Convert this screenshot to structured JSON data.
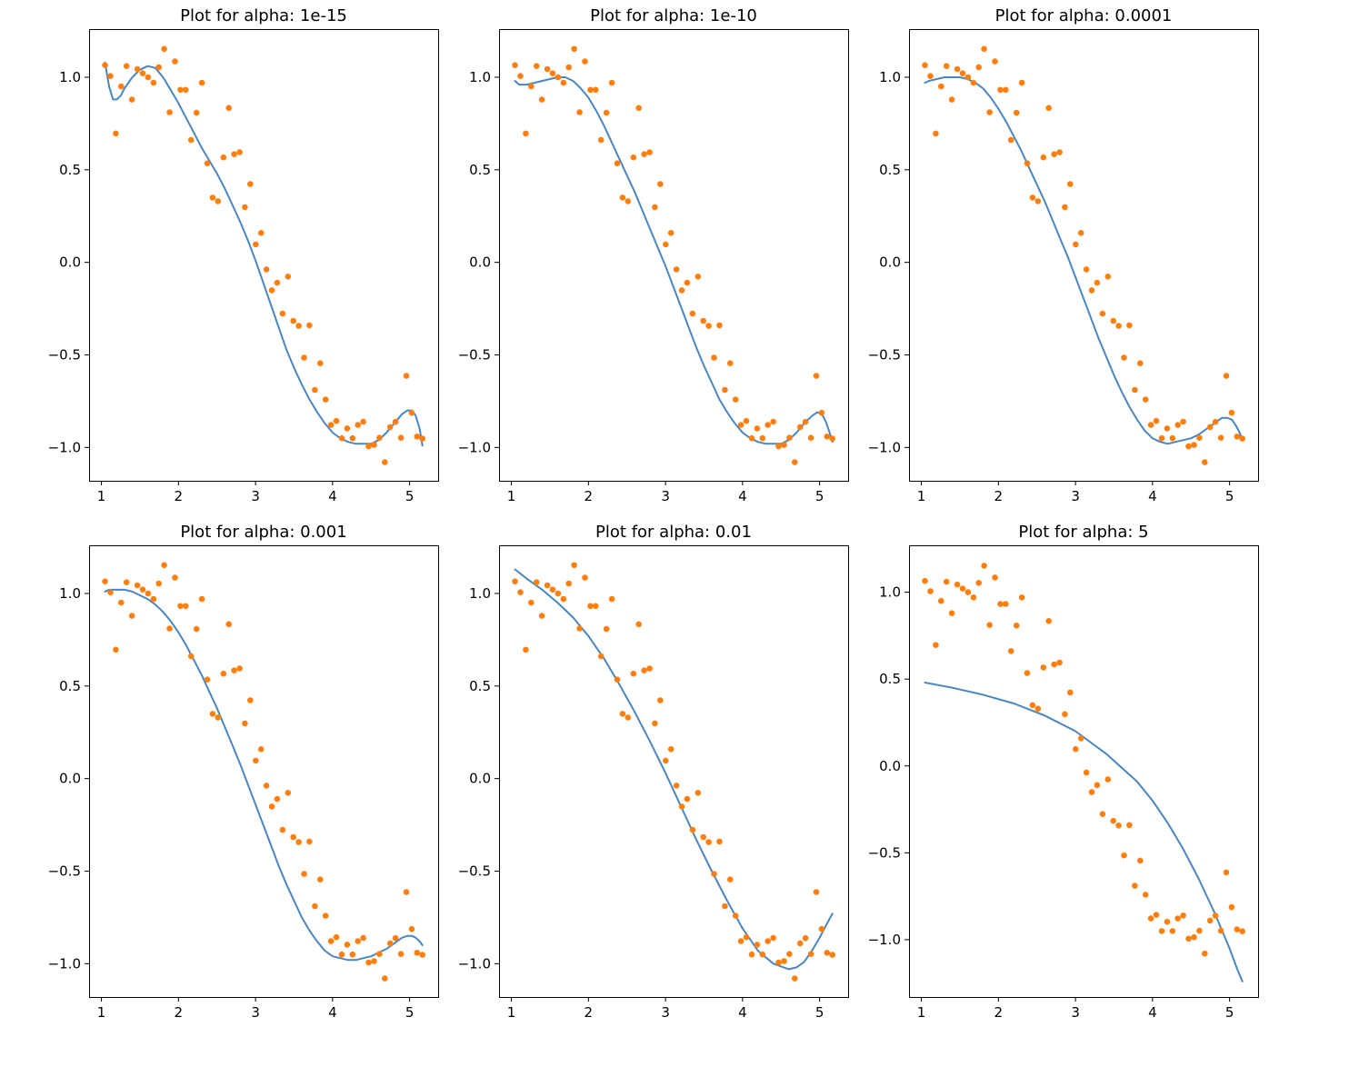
{
  "colors": {
    "points": "#ff7f0e",
    "line": "#4a86c0",
    "frame": "#000000"
  },
  "data_points": {
    "x": [
      1.047,
      1.117,
      1.187,
      1.257,
      1.326,
      1.396,
      1.466,
      1.536,
      1.606,
      1.676,
      1.745,
      1.815,
      1.885,
      1.955,
      2.025,
      2.094,
      2.164,
      2.234,
      2.304,
      2.374,
      2.443,
      2.513,
      2.583,
      2.653,
      2.723,
      2.793,
      2.862,
      2.932,
      3.002,
      3.072,
      3.142,
      3.211,
      3.281,
      3.351,
      3.421,
      3.491,
      3.56,
      3.63,
      3.7,
      3.77,
      3.84,
      3.91,
      3.979,
      4.049,
      4.119,
      4.189,
      4.259,
      4.328,
      4.398,
      4.468,
      4.538,
      4.608,
      4.677,
      4.747,
      4.817,
      4.887,
      4.957,
      5.027,
      5.096,
      5.166
    ],
    "y": [
      1.065,
      1.006,
      0.696,
      0.95,
      1.06,
      0.879,
      1.044,
      1.021,
      1.0,
      0.97,
      1.054,
      1.153,
      0.811,
      1.085,
      0.932,
      0.932,
      0.661,
      0.808,
      0.97,
      0.535,
      0.35,
      0.33,
      0.567,
      0.834,
      0.584,
      0.595,
      0.298,
      0.423,
      0.097,
      0.159,
      -0.038,
      -0.151,
      -0.11,
      -0.277,
      -0.077,
      -0.316,
      -0.343,
      -0.515,
      -0.34,
      -0.689,
      -0.545,
      -0.741,
      -0.878,
      -0.857,
      -0.95,
      -0.897,
      -0.95,
      -0.878,
      -0.861,
      -0.994,
      -0.986,
      -0.948,
      -1.08,
      -0.89,
      -0.862,
      -0.948,
      -0.613,
      -0.813,
      -0.941,
      -0.952
    ]
  },
  "chart_data": [
    {
      "type": "scatter+line",
      "title": "Plot for alpha: 1e-15",
      "xlim": [
        0.84,
        5.37
      ],
      "ylim": [
        -1.18,
        1.26
      ],
      "xticks": [
        1,
        2,
        3,
        4,
        5
      ],
      "xtick_labels": [
        "1",
        "2",
        "3",
        "4",
        "5"
      ],
      "yticks": [
        1.0,
        0.5,
        0.0,
        -0.5,
        -1.0
      ],
      "ytick_labels": [
        "1.0",
        "0.5",
        "0.0",
        "−0.5",
        "−1.0"
      ],
      "fit_x": [
        1.047,
        1.1,
        1.15,
        1.2,
        1.25,
        1.3,
        1.4,
        1.5,
        1.6,
        1.7,
        1.8,
        1.9,
        2.0,
        2.1,
        2.2,
        2.3,
        2.4,
        2.5,
        2.6,
        2.7,
        2.8,
        2.9,
        3.0,
        3.1,
        3.2,
        3.3,
        3.4,
        3.5,
        3.6,
        3.7,
        3.8,
        3.9,
        4.0,
        4.1,
        4.2,
        4.3,
        4.4,
        4.5,
        4.6,
        4.7,
        4.8,
        4.9,
        4.97,
        5.03,
        5.08,
        5.13,
        5.166
      ],
      "fit_y": [
        1.08,
        0.95,
        0.88,
        0.88,
        0.9,
        0.94,
        1.0,
        1.04,
        1.06,
        1.05,
        1.0,
        0.93,
        0.86,
        0.78,
        0.7,
        0.62,
        0.55,
        0.48,
        0.4,
        0.31,
        0.22,
        0.12,
        0.01,
        -0.11,
        -0.23,
        -0.35,
        -0.47,
        -0.57,
        -0.66,
        -0.74,
        -0.81,
        -0.87,
        -0.92,
        -0.95,
        -0.97,
        -0.98,
        -0.98,
        -0.98,
        -0.96,
        -0.92,
        -0.87,
        -0.82,
        -0.8,
        -0.8,
        -0.83,
        -0.9,
        -0.99
      ]
    },
    {
      "type": "scatter+line",
      "title": "Plot for alpha: 1e-10",
      "xlim": [
        0.84,
        5.37
      ],
      "ylim": [
        -1.18,
        1.26
      ],
      "xticks": [
        1,
        2,
        3,
        4,
        5
      ],
      "xtick_labels": [
        "1",
        "2",
        "3",
        "4",
        "5"
      ],
      "yticks": [
        1.0,
        0.5,
        0.0,
        -0.5,
        -1.0
      ],
      "ytick_labels": [
        "1.0",
        "0.5",
        "0.0",
        "−0.5",
        "−1.0"
      ],
      "fit_x": [
        1.047,
        1.1,
        1.2,
        1.3,
        1.4,
        1.5,
        1.6,
        1.7,
        1.8,
        1.9,
        2.0,
        2.1,
        2.2,
        2.3,
        2.4,
        2.5,
        2.6,
        2.7,
        2.8,
        2.9,
        3.0,
        3.1,
        3.2,
        3.3,
        3.4,
        3.5,
        3.6,
        3.7,
        3.8,
        3.9,
        4.0,
        4.1,
        4.2,
        4.3,
        4.4,
        4.5,
        4.6,
        4.7,
        4.8,
        4.9,
        4.97,
        5.03,
        5.08,
        5.13,
        5.166
      ],
      "fit_y": [
        0.98,
        0.96,
        0.96,
        0.97,
        0.98,
        0.99,
        1.0,
        1.0,
        0.98,
        0.94,
        0.89,
        0.82,
        0.74,
        0.65,
        0.56,
        0.47,
        0.38,
        0.28,
        0.18,
        0.08,
        -0.02,
        -0.13,
        -0.24,
        -0.35,
        -0.46,
        -0.56,
        -0.65,
        -0.74,
        -0.81,
        -0.87,
        -0.92,
        -0.95,
        -0.97,
        -0.98,
        -0.98,
        -0.98,
        -0.96,
        -0.92,
        -0.87,
        -0.83,
        -0.81,
        -0.82,
        -0.86,
        -0.92,
        -0.97
      ]
    },
    {
      "type": "scatter+line",
      "title": "Plot for alpha: 0.0001",
      "xlim": [
        0.84,
        5.37
      ],
      "ylim": [
        -1.18,
        1.26
      ],
      "xticks": [
        1,
        2,
        3,
        4,
        5
      ],
      "xtick_labels": [
        "1",
        "2",
        "3",
        "4",
        "5"
      ],
      "yticks": [
        1.0,
        0.5,
        0.0,
        -0.5,
        -1.0
      ],
      "ytick_labels": [
        "1.0",
        "0.5",
        "0.0",
        "−0.5",
        "−1.0"
      ],
      "fit_x": [
        1.047,
        1.1,
        1.2,
        1.3,
        1.4,
        1.5,
        1.6,
        1.7,
        1.8,
        1.9,
        2.0,
        2.1,
        2.2,
        2.3,
        2.4,
        2.5,
        2.6,
        2.7,
        2.8,
        2.9,
        3.0,
        3.1,
        3.2,
        3.3,
        3.4,
        3.5,
        3.6,
        3.7,
        3.8,
        3.9,
        4.0,
        4.1,
        4.2,
        4.3,
        4.4,
        4.5,
        4.6,
        4.7,
        4.8,
        4.9,
        4.97,
        5.03,
        5.08,
        5.13,
        5.166
      ],
      "fit_y": [
        0.97,
        0.98,
        0.99,
        1.0,
        1.0,
        1.0,
        0.99,
        0.97,
        0.94,
        0.89,
        0.83,
        0.76,
        0.68,
        0.6,
        0.51,
        0.42,
        0.33,
        0.23,
        0.13,
        0.03,
        -0.08,
        -0.19,
        -0.3,
        -0.41,
        -0.51,
        -0.61,
        -0.7,
        -0.78,
        -0.85,
        -0.91,
        -0.95,
        -0.97,
        -0.98,
        -0.97,
        -0.96,
        -0.95,
        -0.93,
        -0.9,
        -0.87,
        -0.84,
        -0.84,
        -0.85,
        -0.88,
        -0.92,
        -0.96
      ]
    },
    {
      "type": "scatter+line",
      "title": "Plot for alpha: 0.001",
      "xlim": [
        0.84,
        5.37
      ],
      "ylim": [
        -1.18,
        1.26
      ],
      "xticks": [
        1,
        2,
        3,
        4,
        5
      ],
      "xtick_labels": [
        "1",
        "2",
        "3",
        "4",
        "5"
      ],
      "yticks": [
        1.0,
        0.5,
        0.0,
        -0.5,
        -1.0
      ],
      "ytick_labels": [
        "1.0",
        "0.5",
        "0.0",
        "−0.5",
        "−1.0"
      ],
      "fit_x": [
        1.047,
        1.1,
        1.2,
        1.3,
        1.4,
        1.5,
        1.6,
        1.7,
        1.8,
        1.9,
        2.0,
        2.1,
        2.2,
        2.3,
        2.4,
        2.5,
        2.6,
        2.7,
        2.8,
        2.9,
        3.0,
        3.1,
        3.2,
        3.3,
        3.4,
        3.5,
        3.6,
        3.7,
        3.8,
        3.9,
        4.0,
        4.1,
        4.2,
        4.3,
        4.4,
        4.5,
        4.6,
        4.7,
        4.8,
        4.9,
        4.97,
        5.03,
        5.08,
        5.13,
        5.166
      ],
      "fit_y": [
        1.01,
        1.02,
        1.02,
        1.02,
        1.01,
        0.99,
        0.97,
        0.94,
        0.9,
        0.85,
        0.79,
        0.72,
        0.64,
        0.56,
        0.47,
        0.38,
        0.28,
        0.18,
        0.08,
        -0.03,
        -0.14,
        -0.25,
        -0.36,
        -0.47,
        -0.57,
        -0.66,
        -0.75,
        -0.82,
        -0.88,
        -0.93,
        -0.96,
        -0.97,
        -0.98,
        -0.98,
        -0.97,
        -0.96,
        -0.94,
        -0.92,
        -0.89,
        -0.86,
        -0.85,
        -0.85,
        -0.86,
        -0.88,
        -0.9
      ]
    },
    {
      "type": "scatter+line",
      "title": "Plot for alpha: 0.01",
      "xlim": [
        0.84,
        5.37
      ],
      "ylim": [
        -1.18,
        1.26
      ],
      "xticks": [
        1,
        2,
        3,
        4,
        5
      ],
      "xtick_labels": [
        "1",
        "2",
        "3",
        "4",
        "5"
      ],
      "yticks": [
        1.0,
        0.5,
        0.0,
        -0.5,
        -1.0
      ],
      "ytick_labels": [
        "1.0",
        "0.5",
        "0.0",
        "−0.5",
        "−1.0"
      ],
      "fit_x": [
        1.047,
        1.2,
        1.4,
        1.6,
        1.8,
        2.0,
        2.2,
        2.4,
        2.6,
        2.8,
        3.0,
        3.2,
        3.4,
        3.6,
        3.8,
        4.0,
        4.2,
        4.4,
        4.6,
        4.7,
        4.8,
        4.9,
        5.0,
        5.1,
        5.166
      ],
      "fit_y": [
        1.13,
        1.08,
        1.02,
        0.95,
        0.87,
        0.77,
        0.65,
        0.51,
        0.36,
        0.2,
        0.03,
        -0.15,
        -0.33,
        -0.5,
        -0.66,
        -0.81,
        -0.93,
        -1.0,
        -1.03,
        -1.02,
        -0.99,
        -0.93,
        -0.86,
        -0.78,
        -0.73
      ]
    },
    {
      "type": "scatter+line",
      "title": "Plot for alpha: 5",
      "xlim": [
        0.84,
        5.37
      ],
      "ylim": [
        -1.33,
        1.27
      ],
      "xticks": [
        1,
        2,
        3,
        4,
        5
      ],
      "xtick_labels": [
        "1",
        "2",
        "3",
        "4",
        "5"
      ],
      "yticks": [
        1.0,
        0.5,
        0.0,
        -0.5,
        -1.0
      ],
      "ytick_labels": [
        "1.0",
        "0.5",
        "0.0",
        "−0.5",
        "−1.0"
      ],
      "fit_x": [
        1.047,
        1.4,
        1.8,
        2.2,
        2.6,
        3.0,
        3.4,
        3.8,
        4.0,
        4.2,
        4.4,
        4.6,
        4.8,
        5.0,
        5.1,
        5.166
      ],
      "fit_y": [
        0.48,
        0.45,
        0.41,
        0.36,
        0.29,
        0.2,
        0.07,
        -0.09,
        -0.2,
        -0.33,
        -0.48,
        -0.65,
        -0.84,
        -1.05,
        -1.17,
        -1.24
      ]
    }
  ]
}
